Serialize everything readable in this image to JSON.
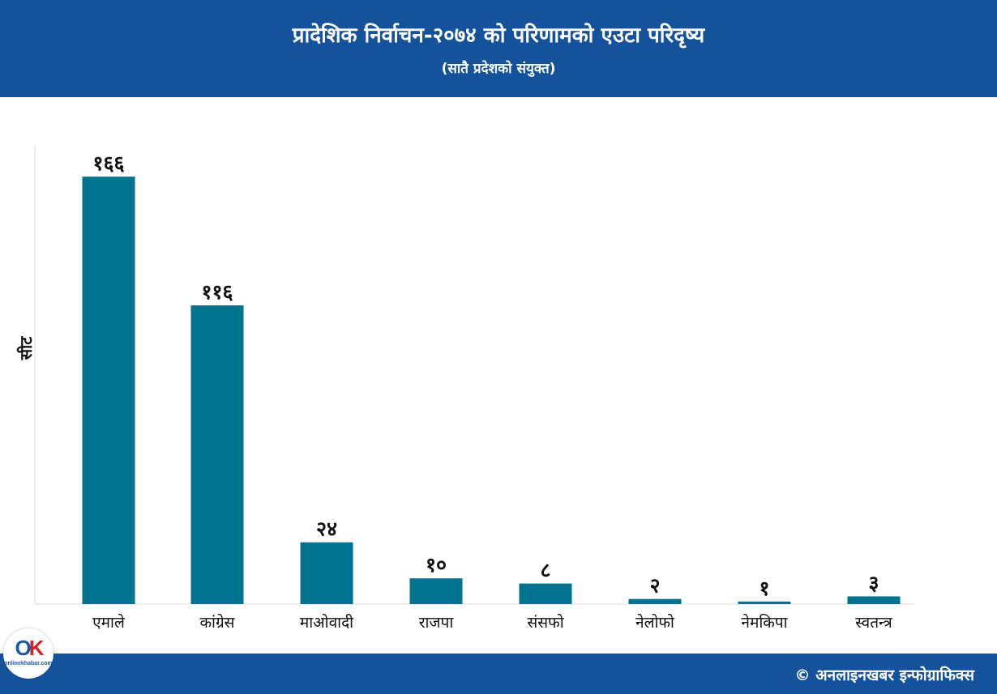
{
  "header": {
    "title": "प्रादेशिक निर्वाचन-२०७४ को परिणामको एउटा परिदृष्य",
    "subtitle": "(सातै प्रदेशको संयुक्त)"
  },
  "colors": {
    "header_bg": "#15529c",
    "bar": "#00738f",
    "axis": "#dddddd"
  },
  "chart_data": {
    "type": "bar",
    "ylabel": "सीट",
    "xlabel": "",
    "categories": [
      "एमाले",
      "कांग्रेस",
      "माओवादी",
      "राजपा",
      "संसफो",
      "नेलोफो",
      "नेमकिपा",
      "स्वतन्त्र"
    ],
    "values": [
      166,
      116,
      24,
      10,
      8,
      2,
      1,
      3
    ],
    "value_labels": [
      "१६६",
      "११६",
      "२४",
      "१०",
      "८",
      "२",
      "१",
      "३"
    ],
    "grid": false,
    "legend": "none"
  },
  "footer": {
    "credit": "© अनलाइनखबर इन्फोग्राफिक्स",
    "logo_mark_o": "O",
    "logo_mark_k": "K",
    "logo_word": "onlinekhabar.com",
    "logo_icon": "onlinekhabar-logo-icon"
  }
}
